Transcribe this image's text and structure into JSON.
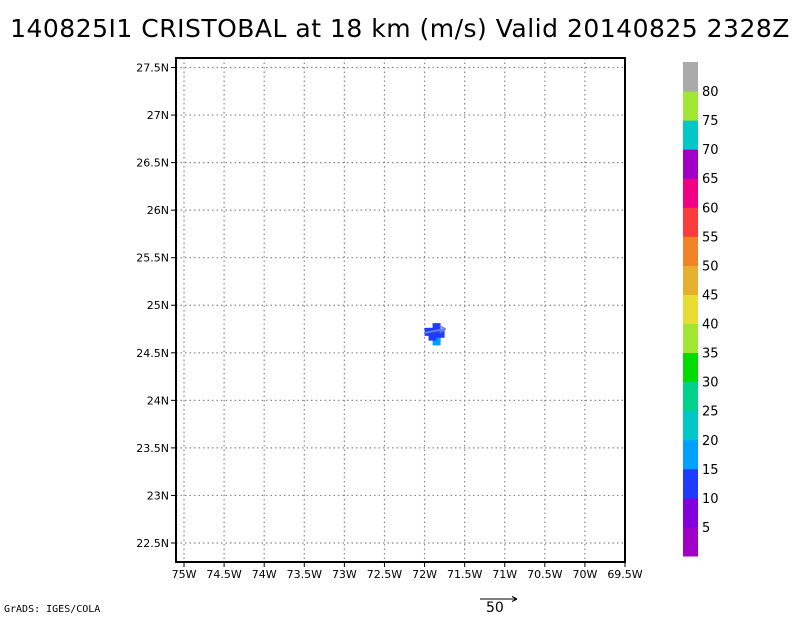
{
  "title": "140825I1 CRISTOBAL at 18 km (m/s) Valid 20140825 2328Z",
  "credit": "GrADS: IGES/COLA",
  "reference_vector_label": "50",
  "chart_data": {
    "type": "scatter",
    "title": "140825I1 CRISTOBAL at 18 km (m/s) Valid 20140825 2328Z",
    "xlabel": "",
    "ylabel": "",
    "xlim": [
      -75.1,
      -69.5
    ],
    "ylim": [
      22.3,
      27.6
    ],
    "grid": true,
    "x_ticks": [
      -75,
      -74.5,
      -74,
      -73.5,
      -73,
      -72.5,
      -72,
      -71.5,
      -71,
      -70.5,
      -70,
      -69.5
    ],
    "x_tick_labels": [
      "75W",
      "74.5W",
      "74W",
      "73.5W",
      "73W",
      "72.5W",
      "72W",
      "71.5W",
      "71W",
      "70.5W",
      "70W",
      "69.5W"
    ],
    "y_ticks": [
      22.5,
      23,
      23.5,
      24,
      24.5,
      25,
      25.5,
      26,
      26.5,
      27,
      27.5
    ],
    "y_tick_labels": [
      "22.5N",
      "23N",
      "23.5N",
      "24N",
      "24.5N",
      "25N",
      "25.5N",
      "26N",
      "26.5N",
      "27N",
      "27.5N"
    ],
    "colorbar": {
      "labels": [
        "5",
        "10",
        "15",
        "20",
        "25",
        "30",
        "35",
        "40",
        "45",
        "50",
        "55",
        "60",
        "65",
        "70",
        "75",
        "80"
      ],
      "colors": [
        "#a000c8",
        "#8200dc",
        "#1e3cff",
        "#00a0ff",
        "#00c8c8",
        "#00d28c",
        "#00dc00",
        "#a0e632",
        "#e6dc32",
        "#e6af2d",
        "#f08228",
        "#fa3c3c",
        "#f00082",
        "#a000c8",
        "#00c8c8",
        "#a0e632",
        "#aaaaaa"
      ]
    },
    "wind_points": [
      {
        "lon": -71.95,
        "lat": 24.72,
        "color": "#1e3cff"
      },
      {
        "lon": -71.9,
        "lat": 24.72,
        "color": "#1e3cff"
      },
      {
        "lon": -71.85,
        "lat": 24.72,
        "color": "#1e3cff"
      },
      {
        "lon": -71.85,
        "lat": 24.67,
        "color": "#1e3cff"
      },
      {
        "lon": -71.85,
        "lat": 24.62,
        "color": "#00a0ff"
      },
      {
        "lon": -71.85,
        "lat": 24.77,
        "color": "#1e3cff"
      },
      {
        "lon": -71.9,
        "lat": 24.67,
        "color": "#1e3cff"
      },
      {
        "lon": -71.8,
        "lat": 24.7,
        "color": "#1e3cff"
      }
    ],
    "wind_vector": {
      "lon": -71.85,
      "lat": 24.72,
      "u": 1.5,
      "v": 0.5
    },
    "reference_vector": {
      "magnitude": 50
    }
  }
}
